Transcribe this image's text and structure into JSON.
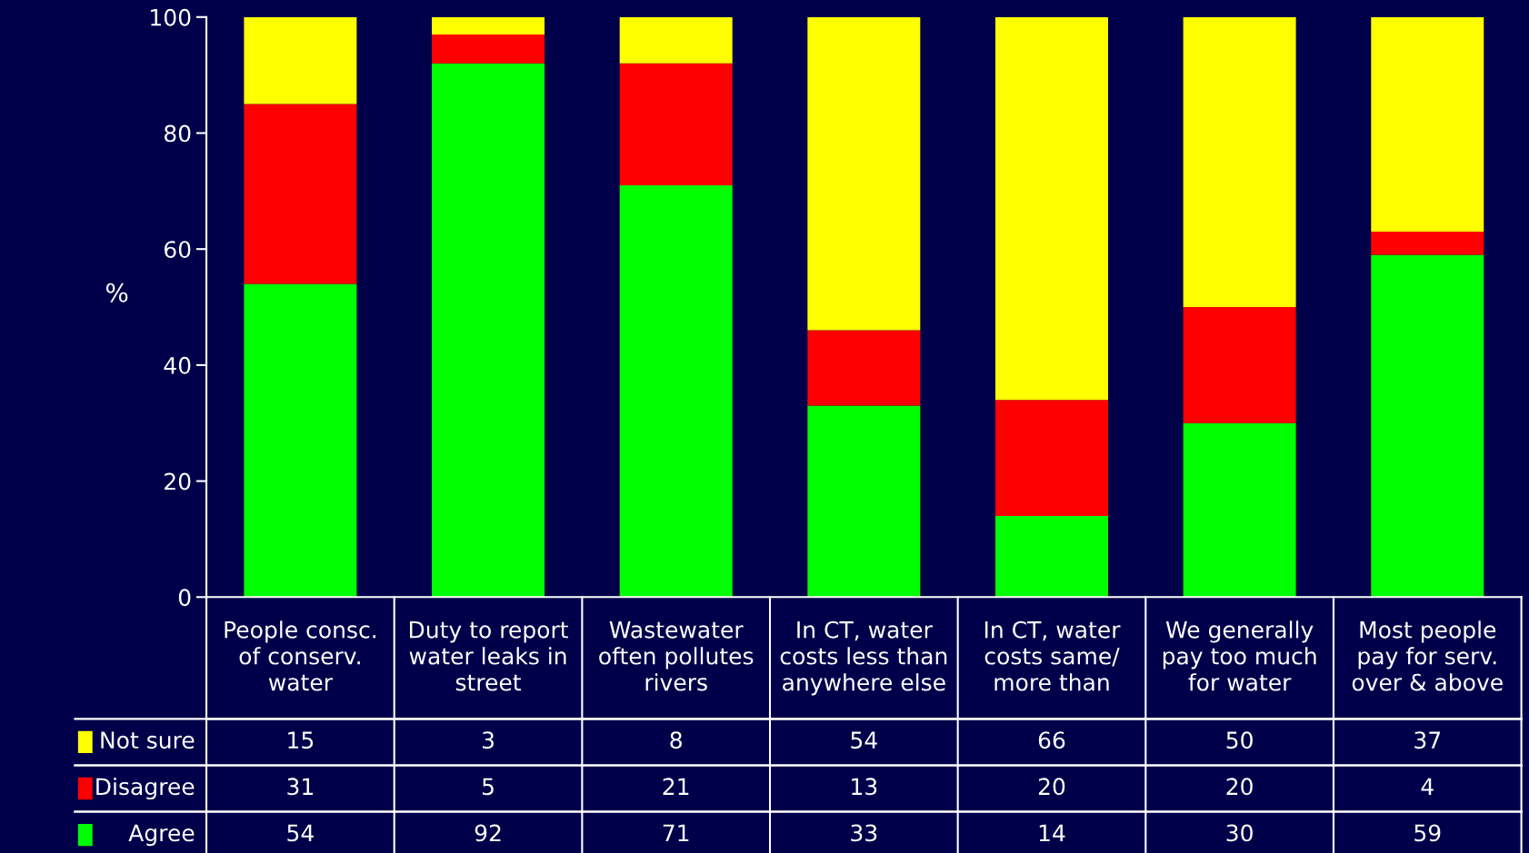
{
  "chart_data": {
    "type": "bar",
    "stacked": true,
    "ylabel": "%",
    "categories": [
      "People consc.\nof conserv.\nwater",
      "Duty to report\nwater leaks in\nstreet",
      "Wastewater\noften pollutes\nrivers",
      "In CT, water\ncosts less than\nanywhere else",
      "In CT, water\ncosts same/\nmore than",
      "We generally\npay too much\nfor water",
      "Most people\npay for serv.\nover & above"
    ],
    "series": [
      {
        "name": "Agree",
        "color": "#00ff00",
        "values": [
          54,
          92,
          71,
          33,
          14,
          30,
          59
        ]
      },
      {
        "name": "Disagree",
        "color": "#ff0000",
        "values": [
          31,
          5,
          21,
          13,
          20,
          20,
          4
        ]
      },
      {
        "name": "Not sure",
        "color": "#ffff00",
        "values": [
          15,
          3,
          8,
          54,
          66,
          50,
          37
        ]
      }
    ],
    "ylim": [
      0,
      100
    ],
    "yticks": [
      0,
      20,
      40,
      60,
      80,
      100
    ],
    "data_labels": true,
    "grid": false,
    "legend": "bottom left"
  }
}
